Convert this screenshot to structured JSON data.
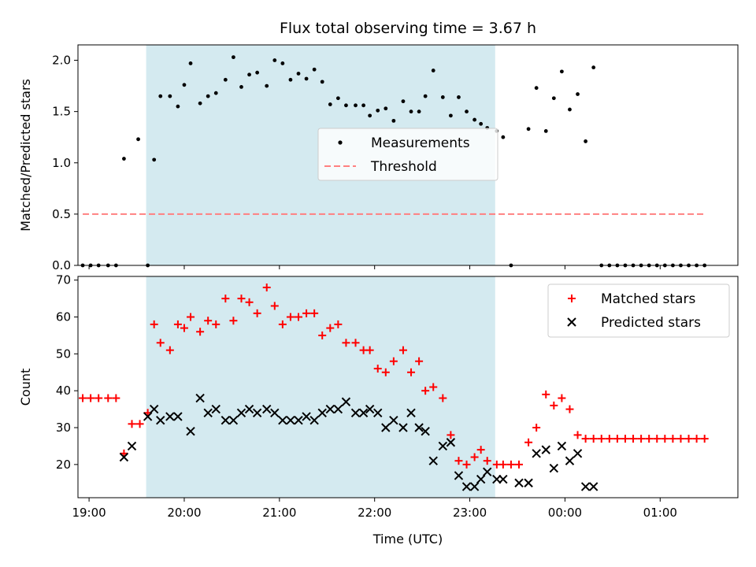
{
  "title": "Flux total observing time = 3.67 h",
  "chart_data": [
    {
      "type": "scatter",
      "ylabel": "Matched/Predicted stars",
      "xlabel": "",
      "x_ticks": [
        "19:00",
        "20:00",
        "21:00",
        "22:00",
        "23:00",
        "00:00",
        "01:00"
      ],
      "y_ticks": [
        "0.0",
        "0.5",
        "1.0",
        "1.5",
        "2.0"
      ],
      "ylim": [
        0,
        2.15
      ],
      "xlim": [
        "18:53",
        "01:49"
      ],
      "grid": false,
      "legend_placement": "center",
      "shaded_interval": {
        "start": "19:36",
        "end": "23:16",
        "color": "#d4eaf0"
      },
      "series": [
        {
          "name": "Measurements",
          "marker": "dot",
          "color": "#000000",
          "x": [
            "18:56",
            "19:01",
            "19:06",
            "19:12",
            "19:17",
            "19:22",
            "19:31",
            "19:37",
            "19:41",
            "19:45",
            "19:51",
            "19:56",
            "20:00",
            "20:04",
            "20:10",
            "20:15",
            "20:20",
            "20:26",
            "20:31",
            "20:36",
            "20:41",
            "20:46",
            "20:52",
            "20:57",
            "21:02",
            "21:07",
            "21:12",
            "21:17",
            "21:22",
            "21:27",
            "21:32",
            "21:37",
            "21:42",
            "21:48",
            "21:53",
            "21:57",
            "22:02",
            "22:07",
            "22:12",
            "22:18",
            "22:23",
            "22:28",
            "22:32",
            "22:37",
            "22:43",
            "22:48",
            "22:53",
            "22:58",
            "23:03",
            "23:07",
            "23:11",
            "23:17",
            "23:21",
            "23:26",
            "23:37",
            "23:42",
            "23:48",
            "23:53",
            "23:58",
            "00:03",
            "00:08",
            "00:13",
            "00:18",
            "00:23",
            "00:28",
            "00:33",
            "00:38",
            "00:43",
            "00:48",
            "00:53",
            "00:58",
            "01:03",
            "01:08",
            "01:13",
            "01:18",
            "01:23",
            "01:28"
          ],
          "y": [
            0.0,
            0.0,
            0.0,
            0.0,
            0.0,
            1.04,
            1.23,
            0.0,
            1.03,
            1.65,
            1.65,
            1.55,
            1.76,
            1.97,
            1.58,
            1.65,
            1.68,
            1.81,
            2.03,
            1.74,
            1.86,
            1.88,
            1.75,
            2.0,
            1.97,
            1.81,
            1.87,
            1.82,
            1.91,
            1.79,
            1.57,
            1.63,
            1.56,
            1.56,
            1.56,
            1.46,
            1.51,
            1.53,
            1.41,
            1.6,
            1.5,
            1.5,
            1.65,
            1.9,
            1.64,
            1.46,
            1.64,
            1.5,
            1.42,
            1.38,
            1.34,
            1.31,
            1.25,
            0.0,
            1.33,
            1.73,
            1.31,
            1.63,
            1.89,
            1.52,
            1.67,
            1.21,
            1.93,
            0.0,
            0.0,
            0.0,
            0.0,
            0.0,
            0.0,
            0.0,
            0.0,
            0.0,
            0.0,
            0.0,
            0.0,
            0.0,
            0.0
          ]
        },
        {
          "name": "Threshold",
          "marker": "dashed-line",
          "color": "#ff8080",
          "x": [
            "18:56",
            "01:28"
          ],
          "y": [
            0.5,
            0.5
          ]
        }
      ]
    },
    {
      "type": "scatter",
      "ylabel": "Count",
      "xlabel": "Time (UTC)",
      "x_ticks": [
        "19:00",
        "20:00",
        "21:00",
        "22:00",
        "23:00",
        "00:00",
        "01:00"
      ],
      "y_ticks": [
        "20",
        "30",
        "40",
        "50",
        "60",
        "70"
      ],
      "ylim": [
        11,
        71
      ],
      "xlim": [
        "18:53",
        "01:49"
      ],
      "grid": false,
      "legend_placement": "top-right",
      "shaded_interval": {
        "start": "19:36",
        "end": "23:16",
        "color": "#d4eaf0"
      },
      "series": [
        {
          "name": "Matched stars",
          "marker": "plus",
          "color": "#ff0000",
          "x": [
            "18:56",
            "19:01",
            "19:06",
            "19:12",
            "19:17",
            "19:22",
            "19:27",
            "19:32",
            "19:37",
            "19:41",
            "19:45",
            "19:51",
            "19:56",
            "20:00",
            "20:04",
            "20:10",
            "20:15",
            "20:20",
            "20:26",
            "20:31",
            "20:36",
            "20:41",
            "20:46",
            "20:52",
            "20:57",
            "21:02",
            "21:07",
            "21:12",
            "21:17",
            "21:22",
            "21:27",
            "21:32",
            "21:37",
            "21:42",
            "21:48",
            "21:53",
            "21:57",
            "22:02",
            "22:07",
            "22:12",
            "22:18",
            "22:23",
            "22:28",
            "22:32",
            "22:37",
            "22:43",
            "22:48",
            "22:53",
            "22:58",
            "23:03",
            "23:07",
            "23:11",
            "23:17",
            "23:21",
            "23:26",
            "23:31",
            "23:37",
            "23:42",
            "23:48",
            "23:53",
            "23:58",
            "00:03",
            "00:08",
            "00:13",
            "00:18",
            "00:23",
            "00:28",
            "00:33",
            "00:38",
            "00:43",
            "00:48",
            "00:53",
            "00:58",
            "01:03",
            "01:08",
            "01:13",
            "01:18",
            "01:23",
            "01:28"
          ],
          "y": [
            38,
            38,
            38,
            38,
            38,
            23,
            31,
            31,
            34,
            58,
            53,
            51,
            58,
            57,
            60,
            56,
            59,
            58,
            65,
            59,
            65,
            64,
            61,
            68,
            63,
            58,
            60,
            60,
            61,
            61,
            55,
            57,
            58,
            53,
            53,
            51,
            51,
            46,
            45,
            48,
            51,
            45,
            48,
            40,
            41,
            38,
            28,
            21,
            20,
            22,
            24,
            21,
            20,
            20,
            20,
            20,
            26,
            30,
            39,
            36,
            38,
            35,
            28,
            27,
            27,
            27,
            27,
            27,
            27,
            27,
            27,
            27,
            27,
            27,
            27,
            27,
            27,
            27,
            27
          ]
        },
        {
          "name": "Predicted stars",
          "marker": "x",
          "color": "#000000",
          "x": [
            "19:22",
            "19:27",
            "19:37",
            "19:41",
            "19:45",
            "19:51",
            "19:56",
            "20:04",
            "20:10",
            "20:15",
            "20:20",
            "20:26",
            "20:31",
            "20:36",
            "20:41",
            "20:46",
            "20:52",
            "20:57",
            "21:02",
            "21:07",
            "21:12",
            "21:17",
            "21:22",
            "21:27",
            "21:32",
            "21:37",
            "21:42",
            "21:48",
            "21:53",
            "21:57",
            "22:02",
            "22:07",
            "22:12",
            "22:18",
            "22:23",
            "22:28",
            "22:32",
            "22:37",
            "22:43",
            "22:48",
            "22:53",
            "22:58",
            "23:03",
            "23:07",
            "23:11",
            "23:17",
            "23:21",
            "23:31",
            "23:37",
            "23:42",
            "23:48",
            "23:53",
            "23:58",
            "00:03",
            "00:08",
            "00:13",
            "00:18"
          ],
          "y": [
            22,
            25,
            33,
            35,
            32,
            33,
            33,
            29,
            38,
            34,
            35,
            32,
            32,
            34,
            35,
            34,
            35,
            34,
            32,
            32,
            32,
            33,
            32,
            34,
            35,
            35,
            37,
            34,
            34,
            35,
            34,
            30,
            32,
            30,
            34,
            30,
            29,
            21,
            25,
            26,
            17,
            14,
            14,
            16,
            18,
            16,
            16,
            15,
            15,
            23,
            24,
            19,
            25,
            21,
            23,
            14,
            14
          ]
        }
      ]
    }
  ]
}
